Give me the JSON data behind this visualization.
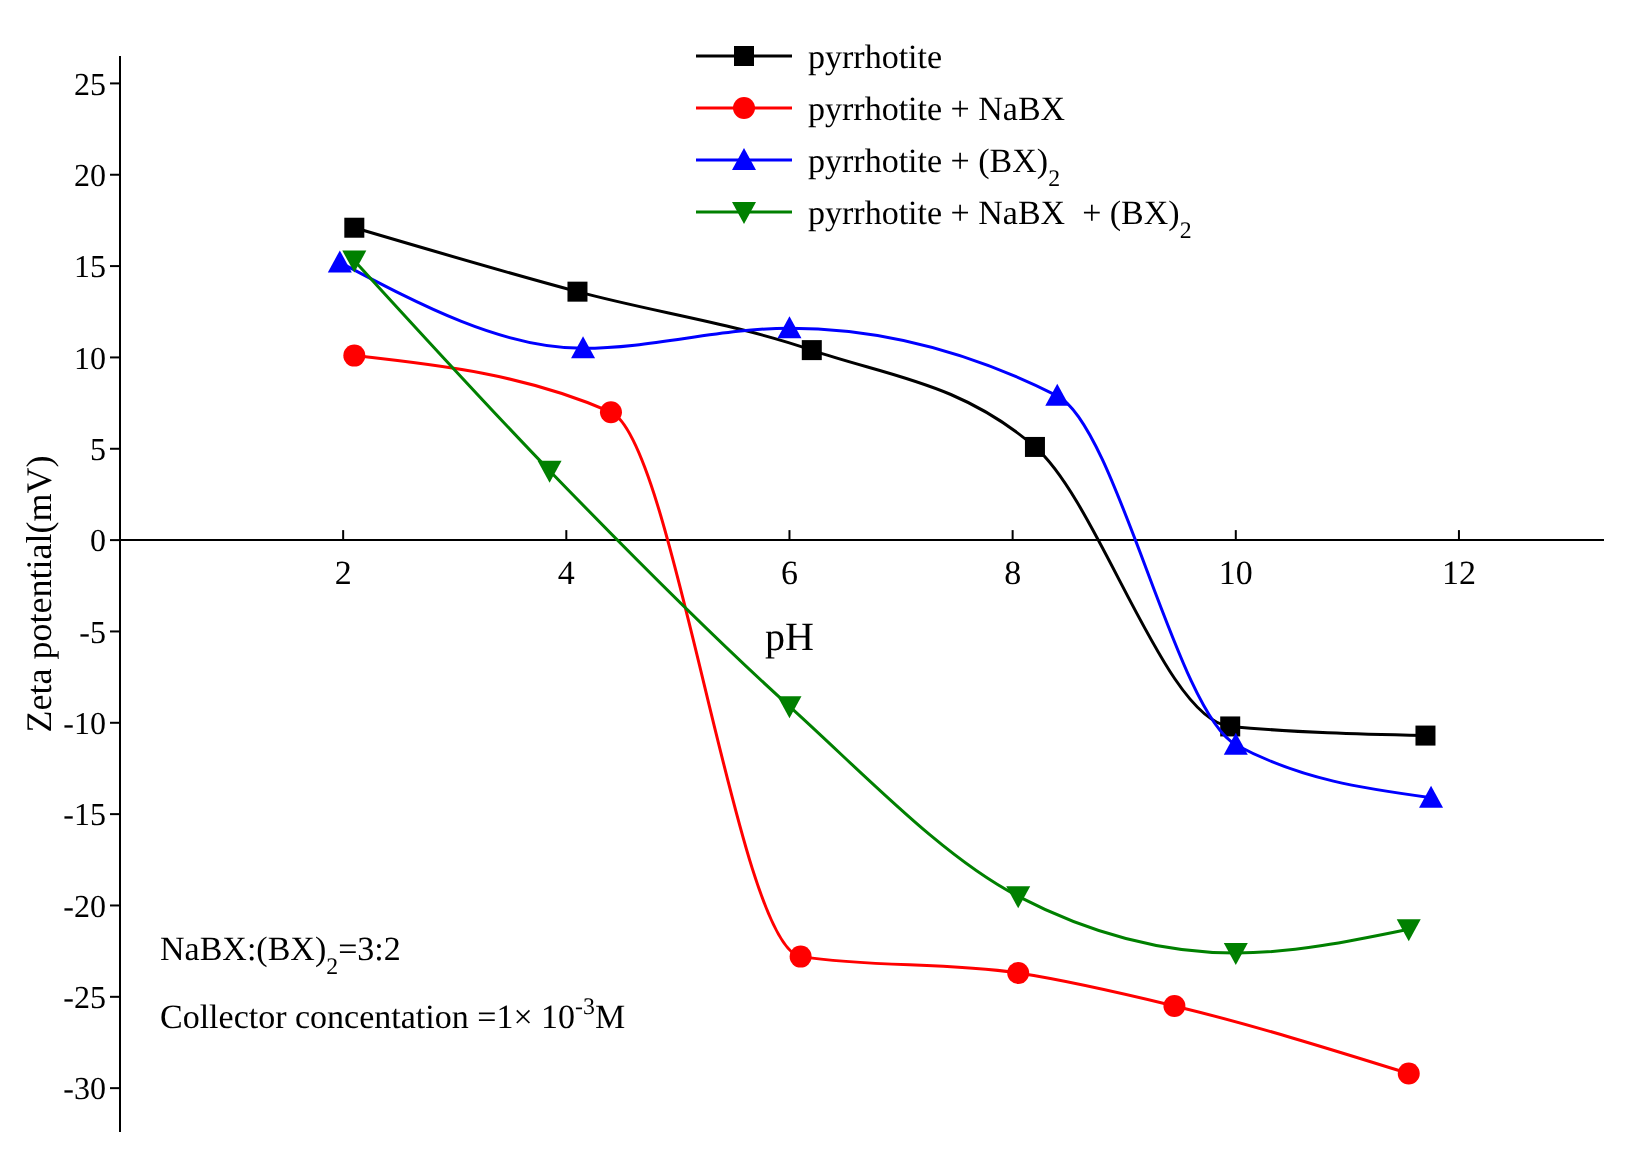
{
  "chart_data": {
    "type": "line",
    "ylabel": "Zeta potential(mV)",
    "xlabel": "pH",
    "xlim": [
      0,
      13.3
    ],
    "ylim": [
      -32.4,
      26.5
    ],
    "xticks": [
      2,
      4,
      6,
      8,
      10,
      12
    ],
    "yticks": [
      -30,
      -25,
      -20,
      -15,
      -10,
      -5,
      0,
      5,
      10,
      15,
      20,
      25
    ],
    "legend": "top right",
    "grid": false,
    "annotations": [
      "NaBX:(BX)$_{2}$=3:2",
      "Collector concentation =1× 10$^{-3}$M"
    ],
    "series": [
      {
        "name": "pyrrhotite",
        "color": "#000000",
        "marker": "square",
        "x": [
          2.1,
          4.1,
          6.2,
          8.2,
          9.95,
          11.7
        ],
        "values": [
          17.1,
          13.6,
          10.4,
          5.1,
          -10.2,
          -10.7
        ]
      },
      {
        "name": "pyrrhotite + NaBX",
        "color": "#ff0000",
        "marker": "circle",
        "x": [
          2.1,
          4.4,
          6.1,
          8.05,
          9.45,
          11.55
        ],
        "values": [
          10.1,
          7.0,
          -22.8,
          -23.7,
          -25.5,
          -29.2
        ]
      },
      {
        "name": "pyrrhotite + (BX)$_{2}$",
        "color": "#0000ff",
        "marker": "triangle",
        "x": [
          1.97,
          4.15,
          6.0,
          8.4,
          10.0,
          11.75
        ],
        "values": [
          15.2,
          10.5,
          11.6,
          7.9,
          -11.2,
          -14.1
        ]
      },
      {
        "name": "pyrrhotite + NaBX  + (BX)$_{2}$",
        "color": "#008000",
        "marker": "triangle-down",
        "x": [
          2.1,
          3.85,
          6.0,
          8.05,
          10.0,
          11.55
        ],
        "values": [
          15.3,
          3.8,
          -9.1,
          -19.5,
          -22.6,
          -21.3
        ]
      }
    ]
  }
}
